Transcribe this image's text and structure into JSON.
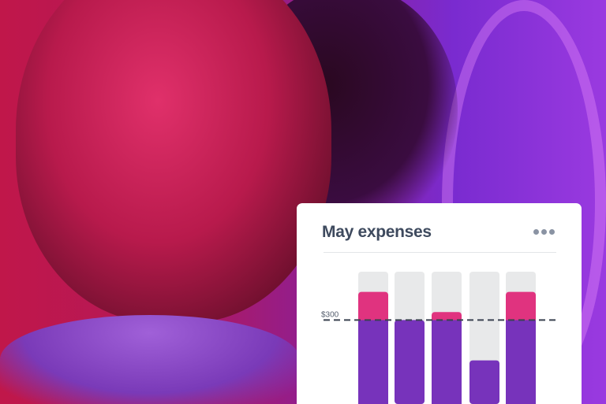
{
  "card": {
    "title": "May expenses",
    "menu_icon": "more-horizontal-icon"
  },
  "chart_data": {
    "type": "bar",
    "title": "May expenses",
    "categories": [
      "",
      "",
      "",
      "",
      ""
    ],
    "values": [
      370,
      300,
      320,
      200,
      370
    ],
    "threshold": {
      "value": 300,
      "label": "$300"
    },
    "ylim": [
      0,
      420
    ],
    "grid": false,
    "colors": {
      "under": "#7733bb",
      "over": "#e0337f",
      "track": "#e8e9ea",
      "threshold": "#3a4250"
    }
  }
}
